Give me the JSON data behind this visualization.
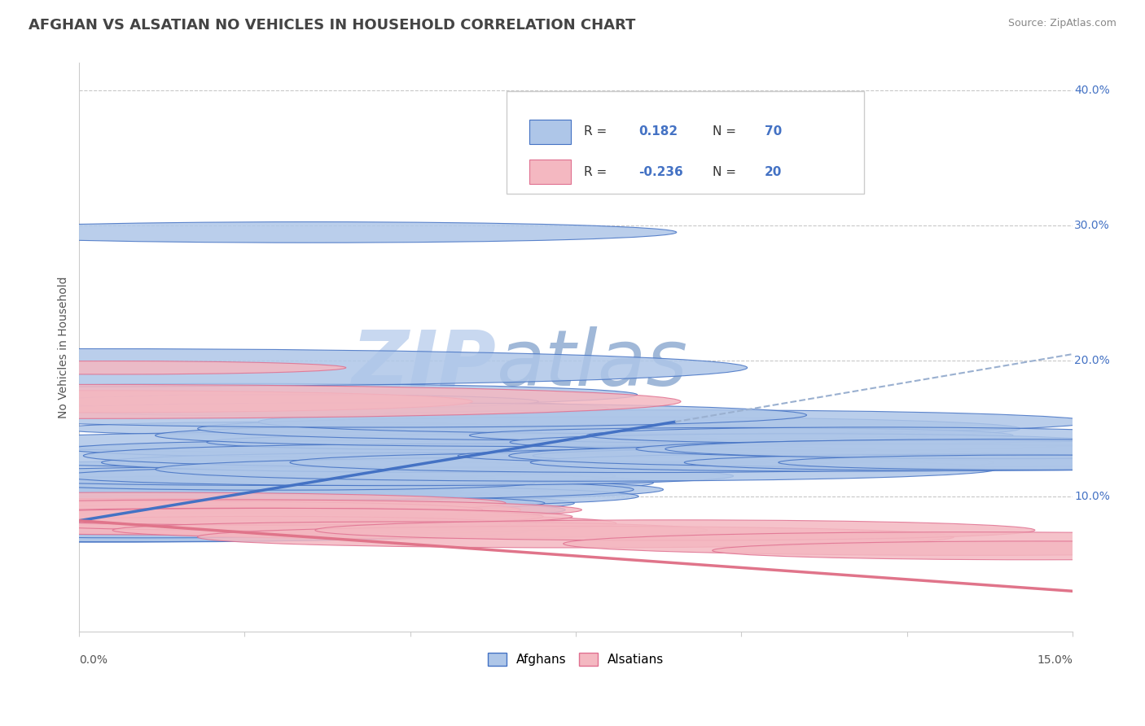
{
  "title": "AFGHAN VS ALSATIAN NO VEHICLES IN HOUSEHOLD CORRELATION CHART",
  "source": "Source: ZipAtlas.com",
  "ylabel": "No Vehicles in Household",
  "xlim": [
    0.0,
    15.0
  ],
  "ylim": [
    0.0,
    42.0
  ],
  "ytick_vals": [
    10.0,
    20.0,
    30.0,
    40.0
  ],
  "ytick_labels": [
    "10.0%",
    "20.0%",
    "30.0%",
    "40.0%"
  ],
  "afghan_color": "#aec6e8",
  "alsatian_color": "#f4b8c1",
  "afghan_edge_color": "#4472c4",
  "alsatian_edge_color": "#e07090",
  "afghan_line_color": "#4472c4",
  "alsatian_line_color": "#e0748a",
  "dashed_line_color": "#9ab0d0",
  "legend_text_color": "#4472c4",
  "R_afghan": 0.182,
  "N_afghan": 70,
  "R_alsatian": -0.236,
  "N_alsatian": 20,
  "title_fontsize": 13,
  "watermark": "ZIPatlas",
  "watermark_color_zip": "#c8d8f0",
  "watermark_color_atlas": "#a0b8d8",
  "background_color": "#ffffff",
  "grid_color": "#c8c8c8",
  "afghan_points_x": [
    0.1,
    0.2,
    0.3,
    0.4,
    0.5,
    0.5,
    0.6,
    0.7,
    0.7,
    0.8,
    0.8,
    0.9,
    0.9,
    1.0,
    1.0,
    1.0,
    1.1,
    1.1,
    1.2,
    1.2,
    1.3,
    1.3,
    1.4,
    1.5,
    1.5,
    1.6,
    1.7,
    1.8,
    1.9,
    2.0,
    2.0,
    2.1,
    2.2,
    2.3,
    2.4,
    2.5,
    2.6,
    2.7,
    2.8,
    2.9,
    3.0,
    3.1,
    3.3,
    3.5,
    3.7,
    4.0,
    4.3,
    4.8,
    5.5,
    6.0,
    6.5,
    7.0,
    7.5,
    8.0,
    8.5,
    9.0,
    9.5,
    10.0,
    10.5,
    11.0,
    11.5,
    12.0,
    12.5,
    13.0,
    13.5,
    14.0,
    14.5,
    2.5,
    3.2,
    4.5
  ],
  "afghan_points_y": [
    8.0,
    7.5,
    8.5,
    8.0,
    9.0,
    8.0,
    8.5,
    7.5,
    9.0,
    8.0,
    8.5,
    9.0,
    8.0,
    9.5,
    8.5,
    7.5,
    8.5,
    9.5,
    8.0,
    9.0,
    8.5,
    9.5,
    8.0,
    9.0,
    10.0,
    9.5,
    10.5,
    9.5,
    9.0,
    10.5,
    9.0,
    10.0,
    9.5,
    11.0,
    10.5,
    10.0,
    9.5,
    11.0,
    10.5,
    12.0,
    11.0,
    11.5,
    15.0,
    13.0,
    16.5,
    14.0,
    13.5,
    11.5,
    12.5,
    14.0,
    13.0,
    14.5,
    12.0,
    15.0,
    12.5,
    15.5,
    13.0,
    14.5,
    13.0,
    14.0,
    12.5,
    14.5,
    13.0,
    13.5,
    12.5,
    13.5,
    12.5,
    17.5,
    17.0,
    16.0
  ],
  "alsatian_points_x": [
    0.1,
    0.3,
    0.5,
    0.7,
    0.8,
    1.0,
    1.1,
    1.3,
    1.5,
    1.8,
    2.0,
    2.2,
    2.5,
    2.8,
    3.0,
    5.0,
    7.5,
    9.0,
    13.5,
    14.5
  ],
  "alsatian_points_y": [
    17.0,
    9.0,
    19.5,
    9.0,
    9.5,
    8.0,
    8.5,
    8.5,
    9.0,
    8.5,
    8.0,
    9.0,
    8.5,
    8.0,
    8.5,
    7.5,
    7.0,
    7.5,
    6.5,
    6.0
  ],
  "large_blue_x": 0.05,
  "large_blue_y": 19.5,
  "outlier_blue_x": 3.5,
  "outlier_blue_y": 29.5,
  "afghan_reg_x0": 0.0,
  "afghan_reg_y0": 8.2,
  "afghan_reg_x1": 9.0,
  "afghan_reg_y1": 15.5,
  "afghan_dash_x0": 9.0,
  "afghan_dash_y0": 15.5,
  "afghan_dash_x1": 15.0,
  "afghan_dash_y1": 20.5,
  "alsatian_reg_x0": 0.0,
  "alsatian_reg_y0": 8.2,
  "alsatian_reg_x1": 15.0,
  "alsatian_reg_y1": 3.0
}
